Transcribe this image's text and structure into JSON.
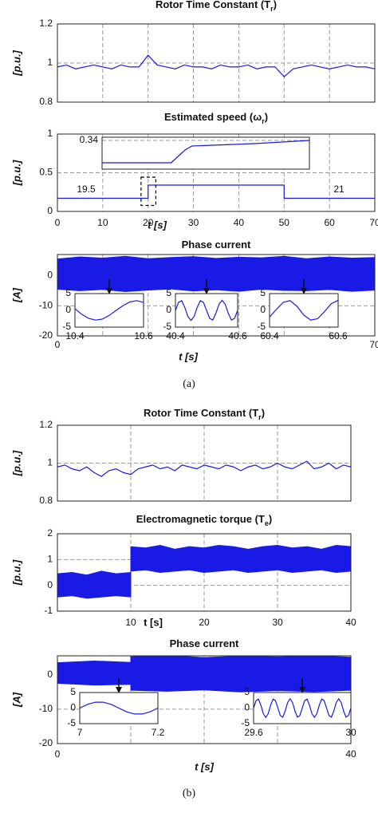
{
  "chart_data": [
    {
      "type": "line",
      "title": [
        "Rotor Time Constant (T",
        "r",
        ")"
      ],
      "ylabel": "[p.u.]",
      "xlim": [
        0,
        70
      ],
      "ylim": [
        0.8,
        1.2
      ],
      "yticks": [
        0.8,
        1,
        1.2
      ],
      "ygrid": [
        1
      ],
      "xgrid": [
        10,
        20,
        30,
        40,
        50,
        60
      ],
      "series": [
        {
          "color": "#1a1ae6",
          "x": [
            0,
            2,
            4,
            6,
            8,
            10,
            12,
            14,
            16,
            18,
            20,
            22,
            24,
            26,
            28,
            30,
            32,
            34,
            36,
            38,
            40,
            42,
            44,
            46,
            48,
            50,
            52,
            54,
            56,
            58,
            60,
            62,
            64,
            66,
            68,
            70
          ],
          "values": [
            0.98,
            0.99,
            0.97,
            0.98,
            0.99,
            0.98,
            0.97,
            0.99,
            0.98,
            0.98,
            1.04,
            0.99,
            0.98,
            0.97,
            0.99,
            0.98,
            0.98,
            0.97,
            0.99,
            0.98,
            0.98,
            0.99,
            0.97,
            0.98,
            0.98,
            0.93,
            0.97,
            0.98,
            0.99,
            0.98,
            0.97,
            0.98,
            0.99,
            0.98,
            0.98,
            0.97
          ]
        }
      ]
    },
    {
      "type": "line",
      "title": [
        "Estimated speed (ω",
        "r",
        ")"
      ],
      "ylabel": "[p.u.]",
      "xlabel": "t [s]",
      "xlim": [
        0,
        70
      ],
      "ylim": [
        0,
        1
      ],
      "yticks": [
        0,
        0.5,
        1
      ],
      "ygrid": [
        0.5
      ],
      "xticks": [
        0,
        10,
        20,
        30,
        40,
        50,
        60,
        70
      ],
      "xgrid": [
        10,
        20,
        30,
        40,
        50,
        60
      ],
      "series": [
        {
          "color": "#1a1ae6",
          "x": [
            0,
            20,
            20,
            50,
            50,
            70
          ],
          "values": [
            0.17,
            0.17,
            0.34,
            0.34,
            0.17,
            0.17
          ]
        }
      ],
      "insets": [
        {
          "type": "line",
          "xlim": [
            19.5,
            21
          ],
          "ylim": [
            0.16,
            0.36
          ],
          "yticks": [
            0.34
          ],
          "xticks": [
            19.5,
            21
          ],
          "series": [
            {
              "color": "#1a1ae6",
              "x": [
                19.5,
                20.0,
                20.05,
                20.1,
                20.15,
                20.3,
                20.6,
                21.0
              ],
              "values": [
                0.2,
                0.2,
                0.24,
                0.28,
                0.305,
                0.31,
                0.32,
                0.34
              ]
            }
          ]
        }
      ]
    },
    {
      "type": "band",
      "title": [
        "Phase current"
      ],
      "ylabel": "[A]",
      "xlabel": "t [s]",
      "xlim": [
        0,
        70
      ],
      "ylim": [
        -20,
        7
      ],
      "yticks": [
        -20,
        -10,
        0
      ],
      "ygrid": [
        -10
      ],
      "xticks": [
        0,
        70
      ],
      "xgrid": [
        10,
        20,
        30,
        40,
        50,
        60
      ],
      "series": [
        {
          "color": "#1a1ae6",
          "x": [
            0,
            5,
            10,
            15,
            20,
            25,
            30,
            35,
            40,
            45,
            50,
            55,
            60,
            65,
            70
          ],
          "upper": [
            5.5,
            6.2,
            5.8,
            6.4,
            5.6,
            6.0,
            6.3,
            5.7,
            6.1,
            5.9,
            6.4,
            5.6,
            6.2,
            5.8,
            6.0
          ],
          "lower": [
            -4.5,
            -5.0,
            -4.6,
            -5.3,
            -4.8,
            -4.4,
            -5.1,
            -4.7,
            -5.2,
            -4.5,
            -4.9,
            -5.0,
            -4.6,
            -5.2,
            -4.8
          ]
        }
      ],
      "insets": [
        {
          "type": "line",
          "xlim": [
            10.4,
            10.6
          ],
          "ylim": [
            -5,
            5
          ],
          "yticks": [
            -5,
            0,
            5
          ],
          "xticks": [
            10.4,
            10.6
          ],
          "series": [
            {
              "color": "#1a1ae6",
              "x": [
                10.4,
                10.42,
                10.44,
                10.46,
                10.48,
                10.5,
                10.52,
                10.54,
                10.56,
                10.58,
                10.6
              ],
              "values": [
                0.5,
                -1.2,
                -2.4,
                -2.9,
                -2.6,
                -1.5,
                0,
                1.4,
                2.5,
                2.9,
                2.4
              ]
            }
          ]
        },
        {
          "type": "line",
          "xlim": [
            40.4,
            40.6
          ],
          "ylim": [
            -5,
            5
          ],
          "yticks": [
            -5,
            0,
            5
          ],
          "xticks": [
            40.4,
            40.6
          ],
          "series": [
            {
              "color": "#1a1ae6",
              "x": [
                40.4,
                40.41,
                40.42,
                40.43,
                40.44,
                40.45,
                40.46,
                40.47,
                40.48,
                40.49,
                40.5,
                40.51,
                40.52,
                40.53,
                40.54,
                40.55,
                40.56,
                40.57,
                40.58,
                40.59,
                40.6
              ],
              "values": [
                0,
                2.4,
                2.9,
                0.9,
                -1.8,
                -3,
                -1.8,
                0.9,
                2.9,
                2.4,
                0,
                -2.4,
                -2.9,
                -0.9,
                1.8,
                3,
                1.8,
                -0.9,
                -2.9,
                -2.4,
                0
              ]
            }
          ]
        },
        {
          "type": "line",
          "xlim": [
            60.4,
            60.6
          ],
          "ylim": [
            -5,
            5
          ],
          "yticks": [
            -5,
            0,
            5
          ],
          "xticks": [
            60.4,
            60.6
          ],
          "series": [
            {
              "color": "#1a1ae6",
              "x": [
                60.4,
                60.42,
                60.44,
                60.46,
                60.48,
                60.5,
                60.52,
                60.54,
                60.56,
                60.58,
                60.6
              ],
              "values": [
                -2.0,
                0.3,
                2.4,
                2.9,
                1.2,
                -1.4,
                -2.9,
                -2.5,
                -0.4,
                2.0,
                3.0
              ]
            }
          ]
        }
      ]
    },
    {
      "type": "line",
      "title": [
        "Rotor Time Constant (T",
        "r",
        ")"
      ],
      "ylabel": "[p.u.]",
      "xlim": [
        0,
        40
      ],
      "ylim": [
        0.8,
        1.2
      ],
      "yticks": [
        0.8,
        1,
        1.2
      ],
      "ygrid": [
        1
      ],
      "xgrid": [
        10,
        20,
        30
      ],
      "series": [
        {
          "color": "#1a1ae6",
          "x": [
            0,
            1,
            2,
            3,
            4,
            5,
            6,
            7,
            8,
            9,
            10,
            11,
            12,
            13,
            14,
            15,
            16,
            17,
            18,
            19,
            20,
            21,
            22,
            23,
            24,
            25,
            26,
            27,
            28,
            29,
            30,
            31,
            32,
            33,
            34,
            35,
            36,
            37,
            38,
            39,
            40
          ],
          "values": [
            0.98,
            0.99,
            0.97,
            0.96,
            0.98,
            0.95,
            0.93,
            0.96,
            0.97,
            0.95,
            0.94,
            0.97,
            0.98,
            0.99,
            0.97,
            0.98,
            0.96,
            0.99,
            0.98,
            0.97,
            0.99,
            0.98,
            0.97,
            0.99,
            0.98,
            0.96,
            0.98,
            0.99,
            0.97,
            0.98,
            1.0,
            0.98,
            0.97,
            0.99,
            1.01,
            0.97,
            0.98,
            1.0,
            0.97,
            0.99,
            0.98
          ]
        }
      ]
    },
    {
      "type": "band",
      "title": [
        "Electromagnetic torque (T",
        "e",
        ")"
      ],
      "ylabel": "[p.u.]",
      "xlabel": "t [s]",
      "xlim": [
        0,
        40
      ],
      "ylim": [
        -1,
        2
      ],
      "yticks": [
        -1,
        0,
        1,
        2
      ],
      "ygrid": [
        0,
        1
      ],
      "xticks": [
        10,
        20,
        30,
        40
      ],
      "xgrid": [
        10,
        20,
        30
      ],
      "series": [
        {
          "color": "#1a1ae6",
          "x": [
            0,
            2,
            4,
            6,
            8,
            10,
            10,
            12,
            14,
            16,
            18,
            20,
            22,
            24,
            26,
            28,
            30,
            32,
            34,
            36,
            38,
            40
          ],
          "upper": [
            0.45,
            0.5,
            0.4,
            0.55,
            0.45,
            0.5,
            1.5,
            1.45,
            1.55,
            1.4,
            1.5,
            1.45,
            1.55,
            1.5,
            1.4,
            1.5,
            1.55,
            1.45,
            1.5,
            1.4,
            1.55,
            1.5
          ],
          "lower": [
            -0.45,
            -0.4,
            -0.5,
            -0.45,
            -0.4,
            -0.45,
            0.55,
            0.6,
            0.5,
            0.55,
            0.6,
            0.5,
            0.55,
            0.6,
            0.5,
            0.55,
            0.6,
            0.5,
            0.55,
            0.6,
            0.5,
            0.55
          ]
        }
      ]
    },
    {
      "type": "band",
      "title": [
        "Phase current"
      ],
      "ylabel": "[A]",
      "xlabel": "t [s]",
      "xlim": [
        0,
        40
      ],
      "ylim": [
        -20,
        5.5
      ],
      "yticks": [
        -20,
        -10,
        0
      ],
      "ygrid": [
        -10
      ],
      "xticks": [
        0,
        40
      ],
      "xgrid": [
        10,
        20,
        30
      ],
      "series": [
        {
          "color": "#1a1ae6",
          "x": [
            0,
            5,
            10,
            10,
            15,
            20,
            25,
            30,
            35,
            40
          ],
          "upper": [
            3.5,
            4,
            3.6,
            5.2,
            5.6,
            5.0,
            5.4,
            5.2,
            5.5,
            5.1
          ],
          "lower": [
            -2.5,
            -3,
            -2.8,
            -4.5,
            -4.8,
            -4.4,
            -5,
            -4.6,
            -4.9,
            -4.5
          ]
        }
      ],
      "insets": [
        {
          "type": "line",
          "xlim": [
            7,
            7.2
          ],
          "ylim": [
            -5,
            5
          ],
          "yticks": [
            -5,
            0,
            5
          ],
          "xticks": [
            7,
            7.2
          ],
          "series": [
            {
              "color": "#1a1ae6",
              "x": [
                7,
                7.02,
                7.04,
                7.06,
                7.08,
                7.1,
                7.12,
                7.14,
                7.16,
                7.18,
                7.2
              ],
              "values": [
                0,
                1.2,
                1.9,
                1.9,
                1.2,
                0,
                -1.2,
                -1.9,
                -1.9,
                -1.2,
                0
              ]
            }
          ]
        },
        {
          "type": "line",
          "xlim": [
            29.6,
            30
          ],
          "ylim": [
            -5,
            5
          ],
          "yticks": [
            -5,
            0,
            5
          ],
          "xticks": [
            29.6,
            30
          ],
          "series": [
            {
              "color": "#1a1ae6",
              "x": [
                29.6,
                29.61,
                29.62,
                29.63,
                29.64,
                29.65,
                29.66,
                29.67,
                29.68,
                29.69,
                29.7,
                29.71,
                29.72,
                29.73,
                29.74,
                29.75,
                29.76,
                29.77,
                29.78,
                29.79,
                29.8,
                29.81,
                29.82,
                29.83,
                29.84,
                29.85,
                29.86,
                29.87,
                29.88,
                29.89,
                29.9,
                29.91,
                29.92,
                29.93,
                29.94,
                29.95,
                29.96,
                29.97,
                29.98,
                29.99,
                30
              ],
              "values": [
                0,
                2.4,
                2.9,
                0.9,
                -1.8,
                -3,
                -1.8,
                0.9,
                2.9,
                2.4,
                0,
                -2.4,
                -2.9,
                -0.9,
                1.8,
                3,
                1.8,
                -0.9,
                -2.9,
                -2.4,
                0,
                2.4,
                2.9,
                0.9,
                -1.8,
                -3,
                -1.8,
                0.9,
                2.9,
                2.4,
                0,
                -2.4,
                -2.9,
                -0.9,
                1.8,
                3,
                1.8,
                -0.9,
                -2.9,
                -2.4,
                0
              ]
            }
          ]
        }
      ]
    }
  ],
  "captions": [
    "(a)",
    "(b)"
  ]
}
